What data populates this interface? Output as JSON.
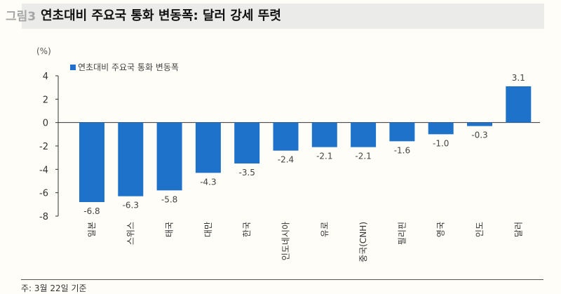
{
  "figure_label": "그림3",
  "title": "연초대비 주요국 통화 변동폭: 달러 강세 뚜렷",
  "footnote": "주: 3월 22일 기준",
  "chart_data": {
    "type": "bar",
    "unit_label": "(%)",
    "categories": [
      "일본",
      "스위스",
      "태국",
      "대만",
      "한국",
      "인도네시아",
      "유로",
      "중국(CNH)",
      "필리핀",
      "영국",
      "인도",
      "달러"
    ],
    "series": [
      {
        "name": "연초대비 주요국 통화 변동폭",
        "values": [
          -6.8,
          -6.3,
          -5.8,
          -4.3,
          -3.5,
          -2.4,
          -2.1,
          -2.1,
          -1.6,
          -1.0,
          -0.3,
          3.1
        ],
        "color": "#1f72c9"
      }
    ],
    "ylim": [
      -8,
      4
    ],
    "yticks": [
      4,
      2,
      0,
      -2,
      -4,
      -6,
      -8
    ],
    "grid": false,
    "legend": "top-left"
  }
}
